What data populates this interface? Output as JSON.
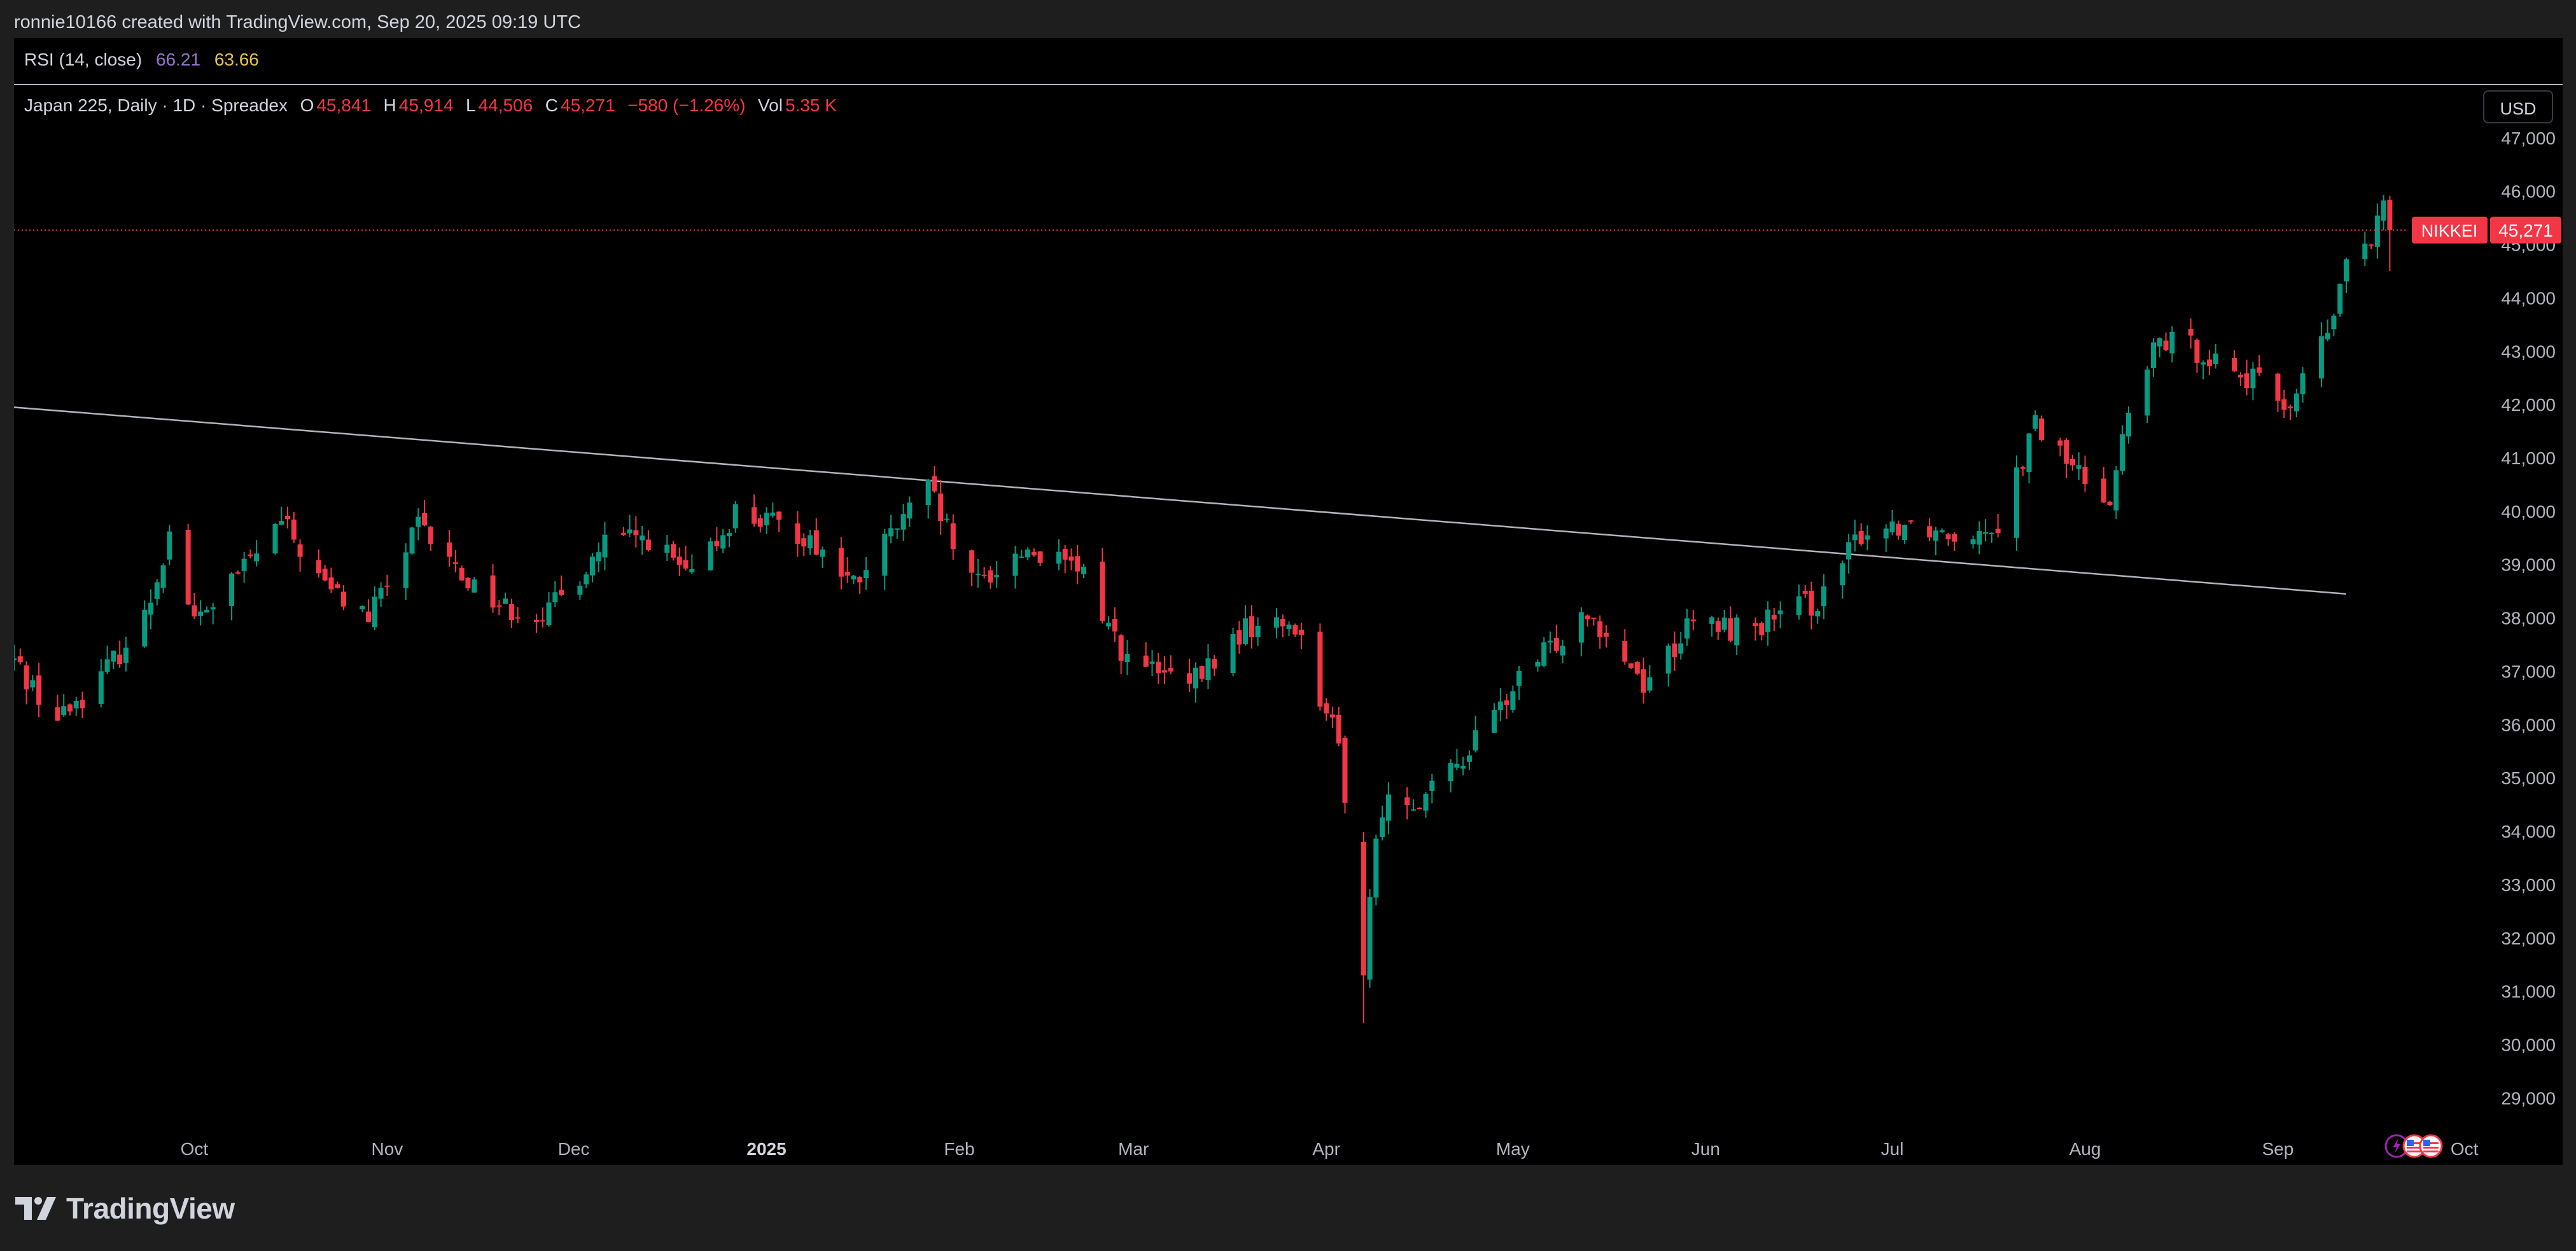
{
  "topbar": {
    "attribution": "ronnie10166 created with TradingView.com, Sep 20, 2025 09:19 UTC"
  },
  "rsi": {
    "label": "RSI (14, close)",
    "value1": "66.21",
    "value2": "63.66",
    "value1_color": "#9575cd",
    "value2_color": "#e6c34a"
  },
  "legend": {
    "symbol": "Japan 225, Daily · 1D · Spreadex",
    "o_label": "O",
    "o_value": "45,841",
    "h_label": "H",
    "h_value": "45,914",
    "l_label": "L",
    "l_value": "44,506",
    "c_label": "C",
    "c_value": "45,271",
    "change": "−580 (−1.26%)",
    "vol_label": "Vol",
    "vol_value": "5.35 K"
  },
  "currency_button": "USD",
  "price_tag": {
    "name": "NIKKEI",
    "value": "45,271",
    "color": "#f23645"
  },
  "footer": {
    "brand": "TradingView",
    "logo_icon": "tradingview-logo-icon"
  },
  "event_icons": [
    "lightning-icon",
    "us-flag-icon",
    "us-flag-icon"
  ],
  "chart_data": {
    "type": "candlestick",
    "title": "Japan 225, Daily · 1D · Spreadex",
    "y_range": [
      28600,
      47200
    ],
    "y_ticks": [
      29000,
      30000,
      31000,
      32000,
      33000,
      34000,
      35000,
      36000,
      37000,
      38000,
      39000,
      40000,
      41000,
      42000,
      43000,
      44000,
      45000,
      46000,
      47000
    ],
    "y_tick_labels": [
      "29,000",
      "30,000",
      "31,000",
      "32,000",
      "33,000",
      "34,000",
      "35,000",
      "36,000",
      "37,000",
      "38,000",
      "39,000",
      "40,000",
      "41,000",
      "42,000",
      "43,000",
      "44,000",
      "45,000",
      "46,000",
      "47,000"
    ],
    "x_range": [
      "2024-09-02",
      "2025-10-04"
    ],
    "x_ticks": [
      {
        "label": "Oct",
        "date": "2024-10-01",
        "bold": false
      },
      {
        "label": "Nov",
        "date": "2024-11-01",
        "bold": false
      },
      {
        "label": "Dec",
        "date": "2024-12-01",
        "bold": false
      },
      {
        "label": "2025",
        "date": "2025-01-01",
        "bold": true
      },
      {
        "label": "Feb",
        "date": "2025-02-01",
        "bold": false
      },
      {
        "label": "Mar",
        "date": "2025-03-01",
        "bold": false
      },
      {
        "label": "Apr",
        "date": "2025-04-01",
        "bold": false
      },
      {
        "label": "May",
        "date": "2025-05-01",
        "bold": false
      },
      {
        "label": "Jun",
        "date": "2025-06-01",
        "bold": false
      },
      {
        "label": "Jul",
        "date": "2025-07-01",
        "bold": false
      },
      {
        "label": "Aug",
        "date": "2025-08-01",
        "bold": false
      },
      {
        "label": "Sep",
        "date": "2025-09-01",
        "bold": false
      },
      {
        "label": "Oct",
        "date": "2025-10-01",
        "bold": false
      }
    ],
    "up_color": "#089981",
    "down_color": "#f23645",
    "trendline": {
      "start": {
        "date": "2024-09-02",
        "value": 41950
      },
      "end": {
        "date": "2025-09-12",
        "value": 38450
      },
      "color": "#b2b5be"
    },
    "last_price_line": {
      "value": 45271,
      "color": "#f23645",
      "style": "dotted"
    },
    "price_path": [
      [
        "2024-09-02",
        37200
      ],
      [
        "2024-09-09",
        36100
      ],
      [
        "2024-09-16",
        36900
      ],
      [
        "2024-09-23",
        38000
      ],
      [
        "2024-09-27",
        39600
      ],
      [
        "2024-10-01",
        37900
      ],
      [
        "2024-10-08",
        38800
      ],
      [
        "2024-10-15",
        39800
      ],
      [
        "2024-10-22",
        38600
      ],
      [
        "2024-10-29",
        38000
      ],
      [
        "2024-11-06",
        39700
      ],
      [
        "2024-11-13",
        38800
      ],
      [
        "2024-11-20",
        38200
      ],
      [
        "2024-11-27",
        38100
      ],
      [
        "2024-12-06",
        39400
      ],
      [
        "2024-12-13",
        39500
      ],
      [
        "2024-12-20",
        38700
      ],
      [
        "2024-12-27",
        40000
      ],
      [
        "2025-01-08",
        39500
      ],
      [
        "2025-01-15",
        38600
      ],
      [
        "2025-01-22",
        39700
      ],
      [
        "2025-01-27",
        40400
      ],
      [
        "2025-02-03",
        38600
      ],
      [
        "2025-02-12",
        39300
      ],
      [
        "2025-02-21",
        38800
      ],
      [
        "2025-02-28",
        37200
      ],
      [
        "2025-03-10",
        36700
      ],
      [
        "2025-03-19",
        37800
      ],
      [
        "2025-03-27",
        37900
      ],
      [
        "2025-04-03",
        35600
      ],
      [
        "2025-04-07",
        32000
      ],
      [
        "2025-04-10",
        34500
      ],
      [
        "2025-04-18",
        34700
      ],
      [
        "2025-04-25",
        35700
      ],
      [
        "2025-05-02",
        36800
      ],
      [
        "2025-05-13",
        38200
      ],
      [
        "2025-05-22",
        36800
      ],
      [
        "2025-05-30",
        37900
      ],
      [
        "2025-06-06",
        37800
      ],
      [
        "2025-06-13",
        38000
      ],
      [
        "2025-06-20",
        38400
      ],
      [
        "2025-06-26",
        39600
      ],
      [
        "2025-07-03",
        39800
      ],
      [
        "2025-07-11",
        39600
      ],
      [
        "2025-07-18",
        39800
      ],
      [
        "2025-07-24",
        41600
      ],
      [
        "2025-07-31",
        40700
      ],
      [
        "2025-08-05",
        40300
      ],
      [
        "2025-08-08",
        41800
      ],
      [
        "2025-08-13",
        43200
      ],
      [
        "2025-08-20",
        43000
      ],
      [
        "2025-08-27",
        42500
      ],
      [
        "2025-09-03",
        42000
      ],
      [
        "2025-09-10",
        43600
      ],
      [
        "2025-09-12",
        44800
      ],
      [
        "2025-09-16",
        44900
      ],
      [
        "2025-09-18",
        45800
      ],
      [
        "2025-09-19",
        45271
      ]
    ],
    "last_candle": {
      "date": "2025-09-19",
      "open": 45841,
      "high": 45914,
      "low": 44506,
      "close": 45271
    }
  }
}
